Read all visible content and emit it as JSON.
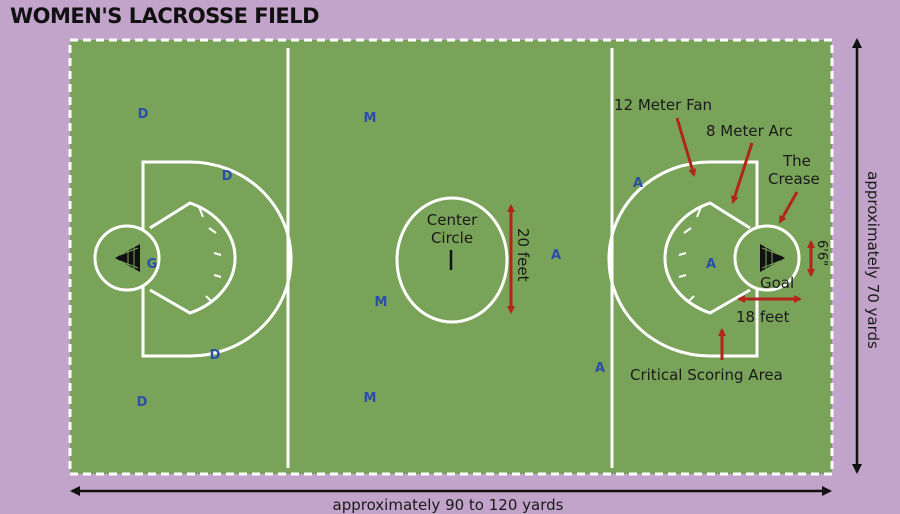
{
  "title": "WOMEN'S LACROSSE FIELD",
  "colors": {
    "background": "#c2a3c9",
    "field": "#7aa35a",
    "lines": "#ffffff",
    "arrows": "#b0261c",
    "players": "#2b4fa8",
    "text": "#1a1a1a"
  },
  "labels": {
    "twelve_meter_fan": "12 Meter Fan",
    "eight_meter_arc": "8 Meter Arc",
    "crease_line1": "The",
    "crease_line2": "Crease",
    "center_line1": "Center",
    "center_line2": "Circle",
    "twenty_feet": "20 feet",
    "goal": "Goal",
    "eighteen_feet": "18 feet",
    "six_feet": "6'6\"",
    "critical_scoring_area": "Critical Scoring Area",
    "width_dimension": "approximately 70 yards",
    "length_dimension": "approximately 90 to 120 yards"
  },
  "players": [
    {
      "mark": "D"
    },
    {
      "mark": "D"
    },
    {
      "mark": "D"
    },
    {
      "mark": "D"
    },
    {
      "mark": "G"
    },
    {
      "mark": "M"
    },
    {
      "mark": "M"
    },
    {
      "mark": "M"
    },
    {
      "mark": "A"
    },
    {
      "mark": "A"
    },
    {
      "mark": "A"
    },
    {
      "mark": "A"
    }
  ]
}
